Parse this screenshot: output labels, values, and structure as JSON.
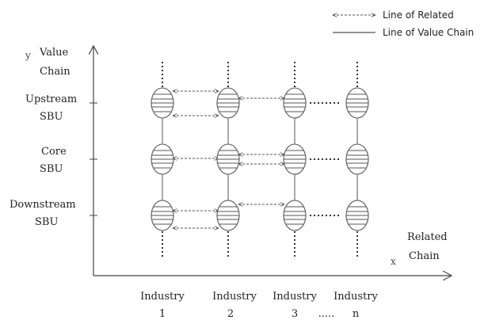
{
  "legend": {
    "related_label": "Line of Related",
    "value_chain_label": "Line of Value Chain"
  },
  "axis": {
    "y_letter": "y",
    "y_label_line1": "Value",
    "y_label_line2": "Chain",
    "x_letter": "x",
    "x_label_line1": "Related",
    "x_label_line2": "Chain"
  },
  "rows": [
    {
      "line1": "Upstream",
      "line2": "SBU"
    },
    {
      "line1": "Core",
      "line2": "SBU"
    },
    {
      "line1": "Downstream",
      "line2": "SBU"
    }
  ],
  "columns": [
    {
      "line1": "Industry",
      "line2": "1"
    },
    {
      "line1": "Industry",
      "line2": "2"
    },
    {
      "line1": "Industry",
      "line2": "3"
    },
    {
      "line1": "Industry",
      "line2": "n"
    }
  ],
  "column_ellipsis": ".....",
  "colors": {
    "line": "#555555",
    "text": "#222222"
  }
}
